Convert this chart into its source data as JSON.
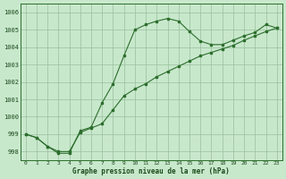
{
  "title": "Graphe pression niveau de la mer (hPa)",
  "background_color": "#c8e8cc",
  "plot_bg_color": "#c8e8cc",
  "grid_color": "#9abf9e",
  "line_color": "#2d6e2d",
  "marker_color": "#2d6e2d",
  "x_labels": [
    "0",
    "1",
    "2",
    "3",
    "4",
    "5",
    "6",
    "7",
    "8",
    "9",
    "10",
    "11",
    "12",
    "13",
    "14",
    "15",
    "16",
    "17",
    "18",
    "19",
    "20",
    "21",
    "22",
    "23"
  ],
  "ylim": [
    997.5,
    1006.5
  ],
  "yticks": [
    998,
    999,
    1000,
    1001,
    1002,
    1003,
    1004,
    1005,
    1006
  ],
  "series1_x": [
    0,
    1,
    2,
    3,
    4,
    5,
    6,
    7,
    8,
    9,
    10,
    11,
    12,
    13,
    14,
    15,
    16,
    17,
    18,
    19,
    20,
    21,
    22,
    23
  ],
  "series1_y": [
    999.0,
    998.8,
    998.3,
    998.0,
    998.0,
    999.1,
    999.35,
    999.6,
    1000.4,
    1001.2,
    1001.6,
    1001.9,
    1002.3,
    1002.6,
    1002.9,
    1003.2,
    1003.5,
    1003.7,
    1003.9,
    1004.1,
    1004.4,
    1004.65,
    1004.9,
    1005.1
  ],
  "series2_x": [
    0,
    1,
    2,
    3,
    4,
    5,
    6,
    7,
    8,
    9,
    10,
    11,
    12,
    13,
    14,
    15,
    16,
    17,
    18,
    19,
    20,
    21,
    22,
    23
  ],
  "series2_y": [
    999.0,
    998.8,
    998.3,
    997.9,
    997.9,
    999.2,
    999.4,
    1000.8,
    1001.9,
    1003.5,
    1005.0,
    1005.3,
    1005.5,
    1005.65,
    1005.5,
    1004.9,
    1004.35,
    1004.15,
    1004.15,
    1004.4,
    1004.65,
    1004.85,
    1005.3,
    1005.1
  ]
}
